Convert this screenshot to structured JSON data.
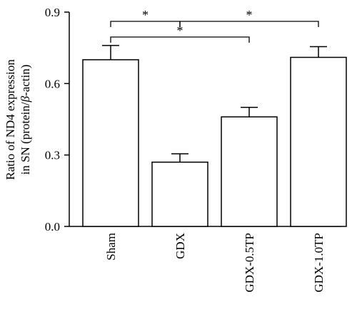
{
  "chart_data": {
    "type": "bar",
    "ylabel_line1": "Ratio of ND4 expression",
    "ylabel_line2_prefix": "in SN (protein/",
    "ylabel_line2_beta": "β",
    "ylabel_line2_suffix": "-actin)",
    "categories": [
      "Sham",
      "GDX",
      "GDX-0.5TP",
      "GDX-1.0TP"
    ],
    "values": [
      0.7,
      0.27,
      0.46,
      0.71
    ],
    "errors": [
      0.06,
      0.035,
      0.04,
      0.045
    ],
    "yticks": [
      "0.0",
      "0.3",
      "0.6",
      "0.9"
    ],
    "ytick_values": [
      0,
      0.3,
      0.6,
      0.9
    ],
    "ylim": [
      0,
      0.9
    ],
    "bar_fill": "#ffffff",
    "bar_stroke": "#000000",
    "significance": [
      {
        "from": 0,
        "to": 1,
        "label": "*"
      },
      {
        "from": 1,
        "to": 3,
        "label": "*"
      },
      {
        "from": 0,
        "to": 2,
        "label": "*"
      }
    ]
  }
}
